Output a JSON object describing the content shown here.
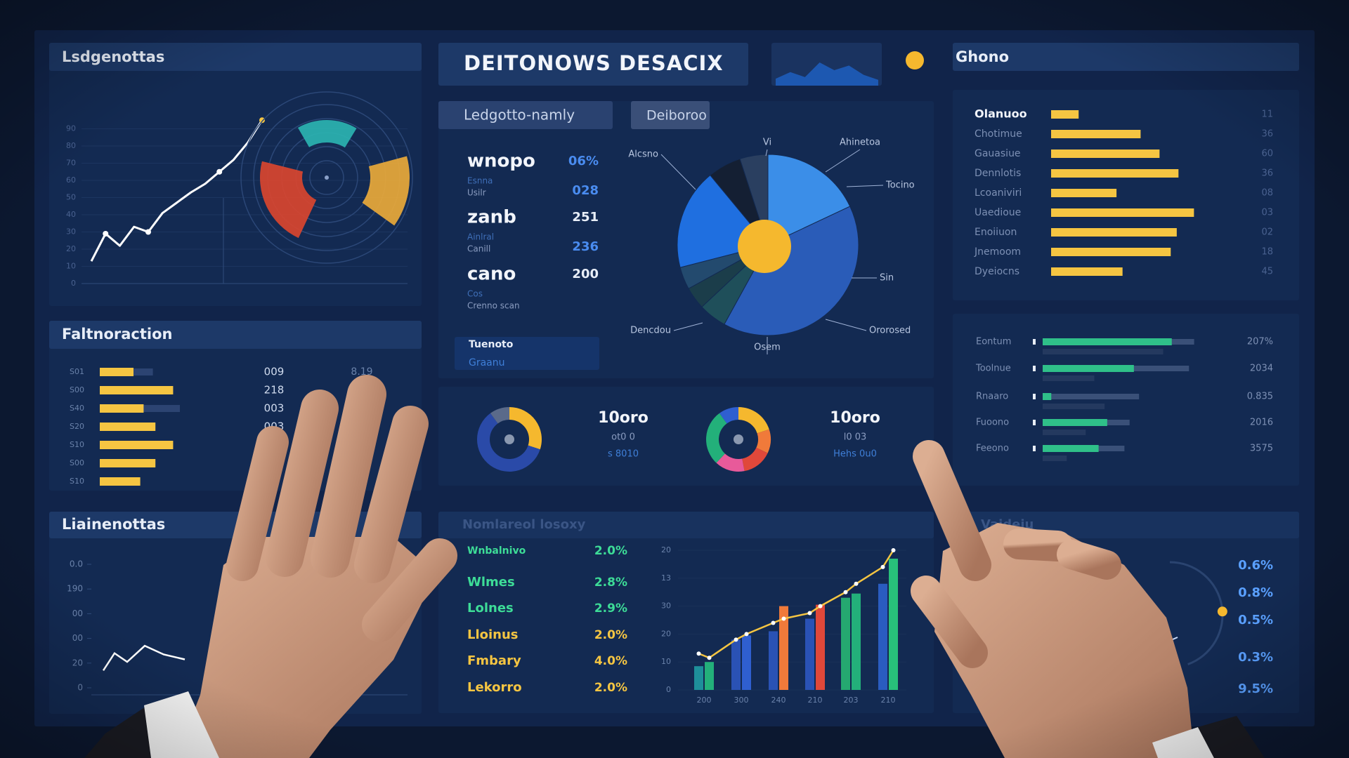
{
  "header": {
    "title": "DEITONOWS DESACIX",
    "mini_chart": {
      "values": [
        18,
        35,
        22,
        60,
        40,
        52,
        28,
        15
      ],
      "ylim": [
        0,
        100
      ],
      "color": "#1f5fc0"
    }
  },
  "tabs": [
    "Ledgotto-namly",
    "Deiboroo"
  ],
  "trend_panel": {
    "title": "Lsdgenottas",
    "ylim": [
      0,
      100
    ],
    "yticks": [
      0,
      10,
      20,
      30,
      40,
      50,
      60,
      70,
      80,
      90
    ],
    "values": [
      13,
      29,
      22,
      33,
      30,
      41,
      47,
      53,
      58,
      65,
      72,
      82,
      95
    ],
    "color": "#ffffff",
    "radial": {
      "values": [
        17,
        14,
        22
      ],
      "colors": [
        "#2bb3b1",
        "#e9a93a",
        "#d9452f"
      ]
    }
  },
  "kpis": [
    {
      "name": "wnopo",
      "values": [
        "06%",
        "028"
      ],
      "colors": [
        "#4a8cf0",
        "#4a8cf0"
      ],
      "notes": [
        "Esnna",
        "Usilr"
      ]
    },
    {
      "name": "zanb",
      "values": [
        "251",
        "236"
      ],
      "colors": [
        "#e8eef8",
        "#4a8cf0"
      ],
      "notes": [
        "Ainlral",
        "Canill"
      ]
    },
    {
      "name": "cano",
      "values": [
        "200"
      ],
      "colors": [
        "#e8eef8"
      ],
      "notes": [
        "Cos",
        "Crenno scan"
      ]
    }
  ],
  "pie": {
    "values": [
      18,
      40,
      5,
      4,
      4,
      18,
      6,
      5
    ],
    "colors": [
      "#3b8ee8",
      "#2a5cb8",
      "#1f4f5a",
      "#1b3d4a",
      "#234a6e",
      "#1f6fe0",
      "#141f33",
      "#2a3f60"
    ],
    "center_color": "#f5b82e",
    "annotations": [
      "Vi",
      "Ahinetoa",
      "Tocino",
      "Sin",
      "Ororosed",
      "Osem",
      "Dencdou",
      "Alcsno"
    ]
  },
  "note_box": {
    "title": "Tuenoto",
    "subtitle": "Graanu"
  },
  "donuts": [
    {
      "values": [
        30,
        60,
        10
      ],
      "colors": [
        "#f5b82e",
        "#2a4aa8",
        "#5a6a8a"
      ],
      "headline": "10oro",
      "lines": [
        "ot0 0",
        "s 8010"
      ]
    },
    {
      "values": [
        20,
        12,
        15,
        15,
        28,
        10
      ],
      "colors": [
        "#f5b82e",
        "#f07a3a",
        "#e0483a",
        "#e85a9a",
        "#23b07a",
        "#2f5fd0"
      ],
      "headline": "10oro",
      "lines": [
        "l0 03",
        "Hehs 0u0"
      ]
    }
  ],
  "feature_panel": {
    "title": "Faltnoraction",
    "xlim": [
      0,
      150
    ],
    "color": "#f5c542",
    "rows": [
      {
        "label": "S01",
        "value": 40,
        "target": 63
      },
      {
        "label": "S00",
        "value": 87,
        "target": 87
      },
      {
        "label": "S40",
        "value": 52,
        "target": 95
      },
      {
        "label": "S20",
        "value": 66,
        "target": 66
      },
      {
        "label": "S10",
        "value": 87,
        "target": 87
      },
      {
        "label": "S00",
        "value": 66,
        "target": 66
      },
      {
        "label": "S10",
        "value": 48,
        "target": 48
      }
    ],
    "columns": [
      [
        "009",
        "218",
        "003",
        "003"
      ],
      [
        "8.19"
      ]
    ]
  },
  "line_panel": {
    "title": "Liainenottas",
    "ylim": [
      0,
      100
    ],
    "yticks": [
      {
        "value": 100,
        "label": "0.0"
      },
      {
        "value": 80,
        "label": "190"
      },
      {
        "value": 60,
        "label": "00"
      },
      {
        "value": 40,
        "label": "00"
      },
      20,
      0
    ],
    "values": [
      14,
      28,
      21,
      34,
      27,
      23
    ],
    "color": "#ffffff"
  },
  "metrics": {
    "title": "Nomlareol losoxy",
    "rows": [
      {
        "label": "Wnbalnivo",
        "value": "2.0%",
        "color": "#3ddc97"
      },
      {
        "label": "Wlmes",
        "value": "2.8%",
        "color": "#3ddc97"
      },
      {
        "label": "Lolnes",
        "value": "2.9%",
        "color": "#3ddc97"
      },
      {
        "label": "Lloinus",
        "value": "2.0%",
        "color": "#f5c542"
      },
      {
        "label": "Fmbary",
        "value": "4.0%",
        "color": "#f5c542"
      },
      {
        "label": "Lekorro",
        "value": "2.0%",
        "color": "#f5c542"
      }
    ]
  },
  "combo": {
    "ylim": [
      0,
      100
    ],
    "yticks": [
      {
        "value": 100,
        "label": "20"
      },
      {
        "value": 80,
        "label": "13"
      },
      {
        "value": 60,
        "label": "30"
      },
      {
        "value": 40,
        "label": "20"
      },
      {
        "value": 20,
        "label": "10"
      },
      0
    ],
    "categories": [
      "200",
      "300",
      "240",
      "210",
      "203",
      "210"
    ],
    "series": [
      {
        "values": [
          17,
          36,
          42,
          51,
          66,
          76
        ],
        "colors": [
          "#1e8f9a",
          "#2a52b5",
          "#2a52b5",
          "#2a52b5",
          "#25a870",
          "#2a5cc0"
        ]
      },
      {
        "values": [
          20,
          39,
          60,
          61,
          69,
          94
        ],
        "colors": [
          "#23b07a",
          "#2f5fd0",
          "#f07a3a",
          "#e0483a",
          "#23b07a",
          "#28c07a"
        ]
      }
    ],
    "line": {
      "values": [
        26,
        23,
        36,
        40,
        48,
        51,
        55,
        60,
        70,
        76,
        88,
        100
      ],
      "color": "#f5c542"
    }
  },
  "ranking": {
    "title": "Ghono",
    "xlim": [
      0,
      200
    ],
    "color": "#f5c542",
    "rows": [
      {
        "label": "Olanuoo",
        "value": 32,
        "code": "11"
      },
      {
        "label": "Chotimue",
        "value": 104,
        "code": "36"
      },
      {
        "label": "Gauasiue",
        "value": 126,
        "code": "60"
      },
      {
        "label": "Dennlotis",
        "value": 148,
        "code": "36"
      },
      {
        "label": "Lcoaniviri",
        "value": 76,
        "code": "08"
      },
      {
        "label": "Uaedioue",
        "value": 166,
        "code": "03"
      },
      {
        "label": "Enoiiuon",
        "value": 146,
        "code": "02"
      },
      {
        "label": "Jnemoom",
        "value": 139,
        "code": "18"
      },
      {
        "label": "Dyeiocns",
        "value": 83,
        "code": "45"
      }
    ]
  },
  "progress": {
    "xlim": [
      0,
      200
    ],
    "color": "#2fc089",
    "rows": [
      {
        "label": "Eontum",
        "value": 150,
        "track": 176,
        "secondary": 140,
        "note": "207%"
      },
      {
        "label": "Toolnue",
        "value": 106,
        "track": 170,
        "secondary": 60,
        "note": "2034"
      },
      {
        "label": "Rnaaro",
        "value": 10,
        "track": 112,
        "secondary": 72,
        "note": "0.835"
      },
      {
        "label": "Fuoono",
        "value": 75,
        "track": 101,
        "secondary": 50,
        "note": "2016"
      },
      {
        "label": "Feeono",
        "value": 65,
        "track": 95,
        "secondary": 28,
        "note": "3575"
      }
    ]
  },
  "gauge": {
    "title": "Vaideiu",
    "value": 48,
    "color": "#f5b82e",
    "readings": [
      "0.6%",
      "0.8%",
      "0.5%",
      "0.3%",
      "9.5%"
    ]
  }
}
